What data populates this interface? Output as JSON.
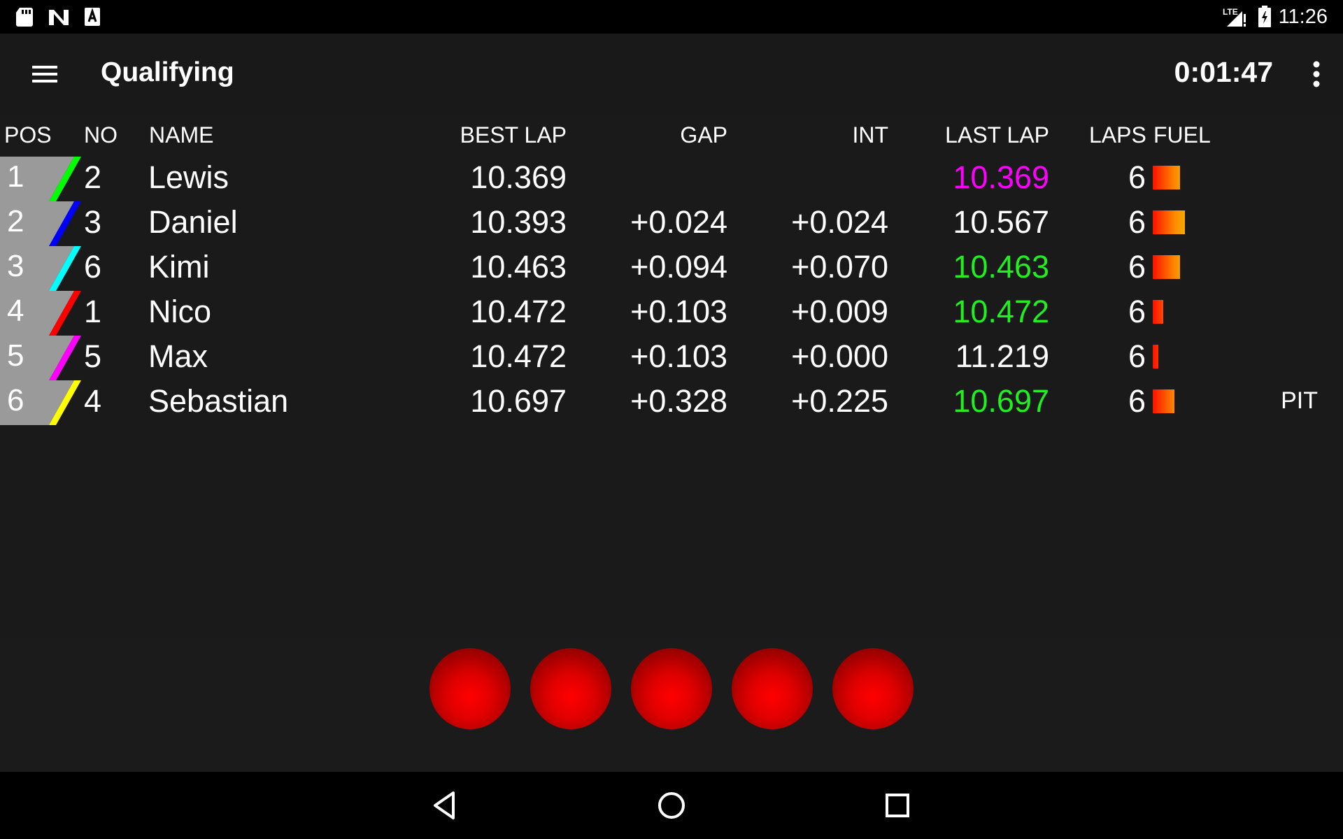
{
  "status_bar": {
    "time": "11:26",
    "network": "LTE",
    "icons": [
      "sd-card-icon",
      "n-logo-icon",
      "a-notification-icon",
      "lte-signal-icon",
      "battery-icon"
    ]
  },
  "app_bar": {
    "title": "Qualifying",
    "timer": "0:01:47"
  },
  "table": {
    "headers": {
      "pos": "POS",
      "no": "NO",
      "name": "NAME",
      "best_lap": "BEST LAP",
      "gap": "GAP",
      "int": "INT",
      "last_lap": "LAST LAP",
      "laps": "LAPS",
      "fuel": "FUEL"
    },
    "rows": [
      {
        "pos": "1",
        "no": "2",
        "name": "Lewis",
        "best_lap": "10.369",
        "gap": "",
        "int": "",
        "last_lap": "10.369",
        "last_lap_color": "#ff00ff",
        "laps": "6",
        "fuel_level": 0.55,
        "car_color": "#00ff00",
        "status": ""
      },
      {
        "pos": "2",
        "no": "3",
        "name": "Daniel",
        "best_lap": "10.393",
        "gap": "+0.024",
        "int": "+0.024",
        "last_lap": "10.567",
        "last_lap_color": "#ffffff",
        "laps": "6",
        "fuel_level": 0.66,
        "car_color": "#0000ff",
        "status": ""
      },
      {
        "pos": "3",
        "no": "6",
        "name": "Kimi",
        "best_lap": "10.463",
        "gap": "+0.094",
        "int": "+0.070",
        "last_lap": "10.463",
        "last_lap_color": "#22ee22",
        "laps": "6",
        "fuel_level": 0.55,
        "car_color": "#00ffff",
        "status": ""
      },
      {
        "pos": "4",
        "no": "1",
        "name": "Nico",
        "best_lap": "10.472",
        "gap": "+0.103",
        "int": "+0.009",
        "last_lap": "10.472",
        "last_lap_color": "#22ee22",
        "laps": "6",
        "fuel_level": 0.22,
        "car_color": "#ff0000",
        "status": ""
      },
      {
        "pos": "5",
        "no": "5",
        "name": "Max",
        "best_lap": "10.472",
        "gap": "+0.103",
        "int": "+0.000",
        "last_lap": "11.219",
        "last_lap_color": "#ffffff",
        "laps": "6",
        "fuel_level": 0.1,
        "car_color": "#ff00ff",
        "status": ""
      },
      {
        "pos": "6",
        "no": "4",
        "name": "Sebastian",
        "best_lap": "10.697",
        "gap": "+0.328",
        "int": "+0.225",
        "last_lap": "10.697",
        "last_lap_color": "#22ee22",
        "laps": "6",
        "fuel_level": 0.44,
        "car_color": "#ffff00",
        "status": "PIT"
      }
    ]
  },
  "start_lights": {
    "count": 5,
    "state": "red"
  },
  "nav_bar": {
    "buttons": [
      "back-icon",
      "home-icon",
      "recents-icon"
    ]
  }
}
